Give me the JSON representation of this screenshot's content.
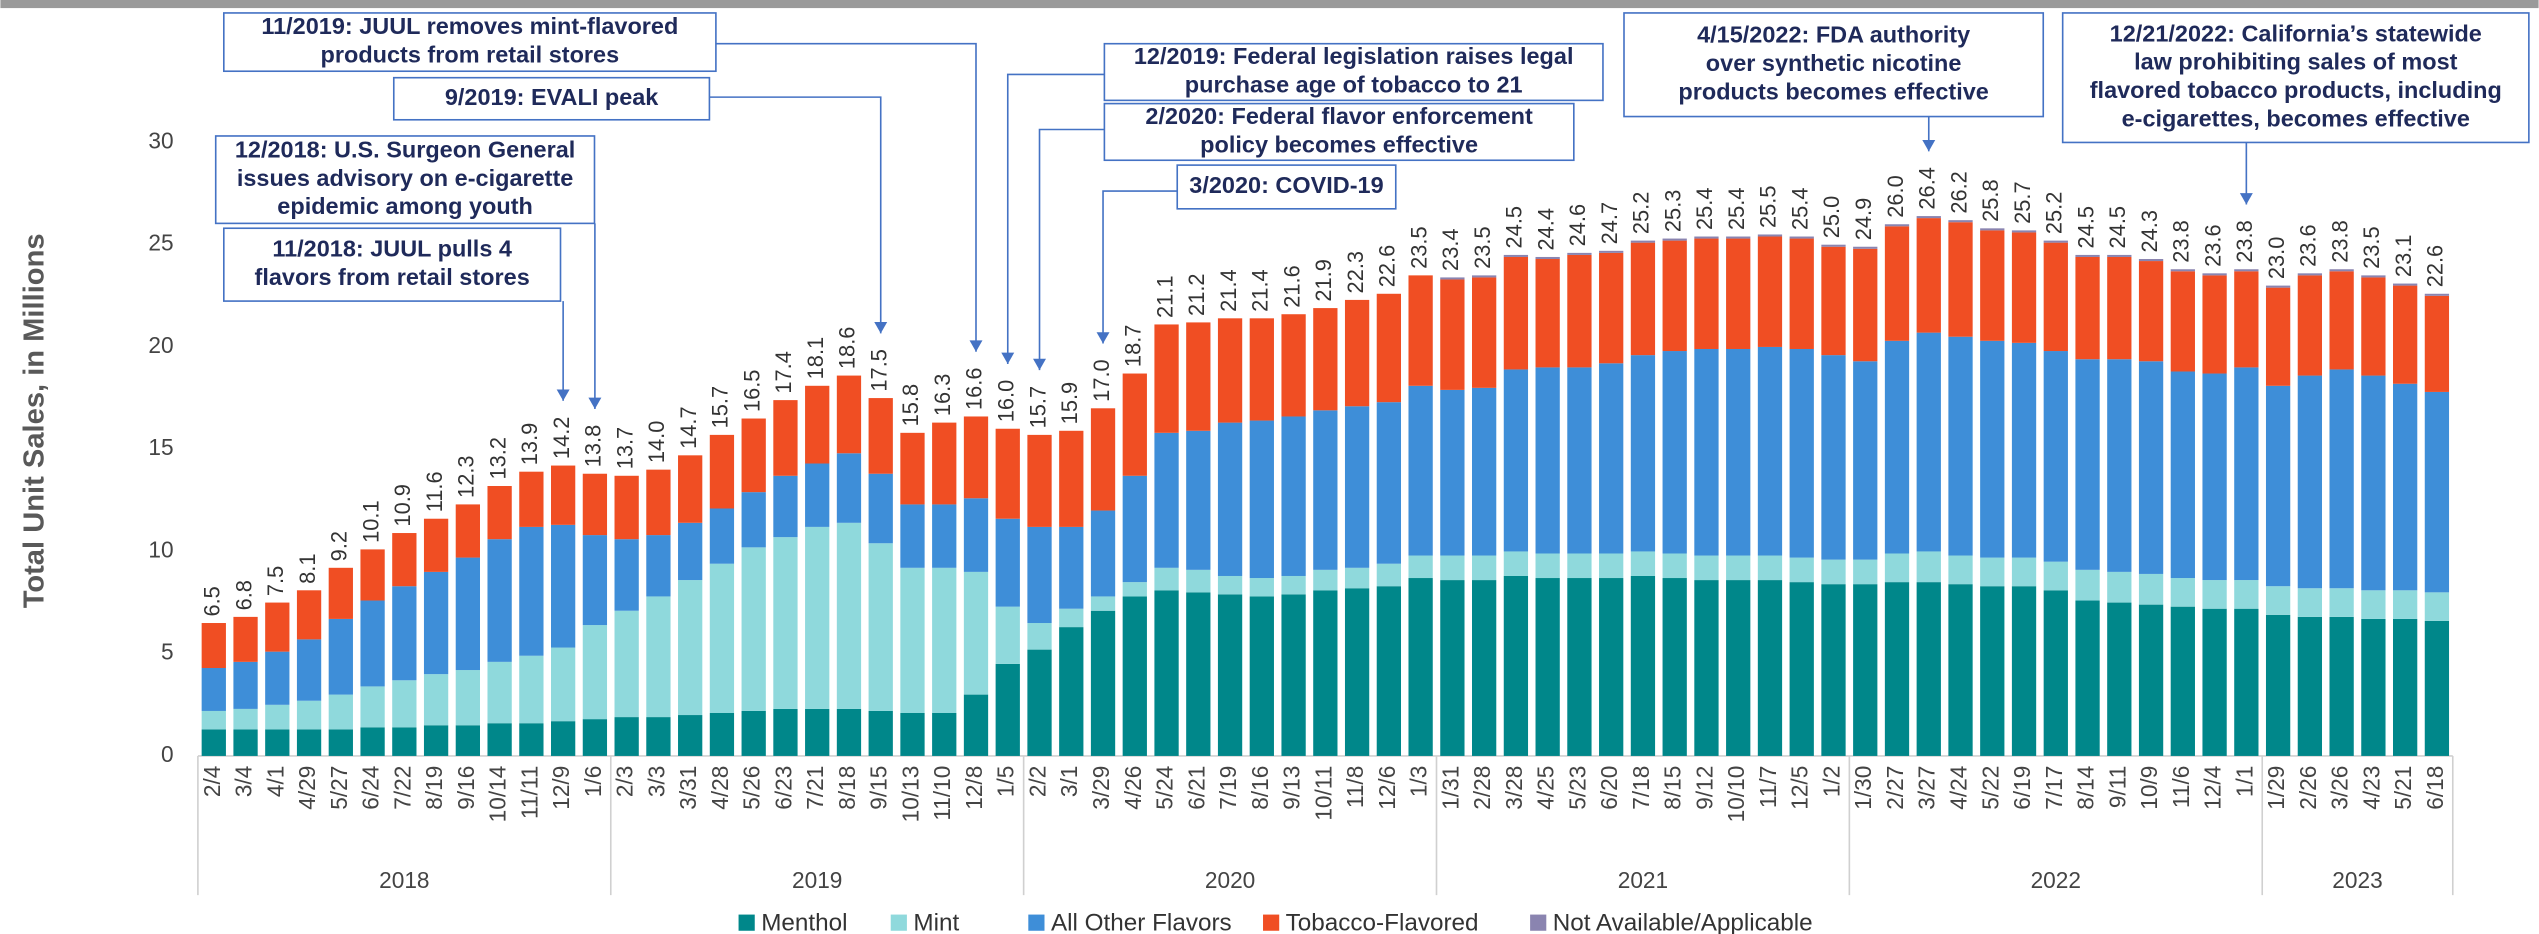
{
  "chart_data": {
    "type": "stacked_bar",
    "y_axis_label": "Total Unit Sales, in Millions",
    "categories": [
      "2/4",
      "3/4",
      "4/1",
      "4/29",
      "5/27",
      "6/24",
      "7/22",
      "8/19",
      "9/16",
      "10/14",
      "11/11",
      "12/9",
      "1/6",
      "2/3",
      "3/3",
      "3/31",
      "4/28",
      "5/26",
      "6/23",
      "7/21",
      "8/18",
      "9/15",
      "10/13",
      "11/10",
      "12/8",
      "1/5",
      "2/2",
      "3/1",
      "3/29",
      "4/26",
      "5/24",
      "6/21",
      "7/19",
      "8/16",
      "9/13",
      "10/11",
      "11/8",
      "12/6",
      "1/3",
      "1/31",
      "2/28",
      "3/28",
      "4/25",
      "5/23",
      "6/20",
      "7/18",
      "8/15",
      "9/12",
      "10/10",
      "11/7",
      "12/5",
      "1/2",
      "1/30",
      "2/27",
      "3/27",
      "4/24",
      "5/22",
      "6/19",
      "7/17",
      "8/14",
      "9/11",
      "10/9",
      "11/6",
      "12/4",
      "1/1",
      "1/29",
      "2/26",
      "3/26",
      "4/23",
      "5/21",
      "6/18"
    ],
    "year_groups": [
      {
        "label": "2018",
        "count": 13
      },
      {
        "label": "2019",
        "count": 13
      },
      {
        "label": "2020",
        "count": 13
      },
      {
        "label": "2021",
        "count": 13
      },
      {
        "label": "2022",
        "count": 13
      },
      {
        "label": "2023",
        "count": 6
      }
    ],
    "series": [
      {
        "name": "Menthol",
        "color": "#00878a",
        "values": [
          1.3,
          1.3,
          1.3,
          1.3,
          1.3,
          1.4,
          1.4,
          1.5,
          1.5,
          1.6,
          1.6,
          1.7,
          1.8,
          1.9,
          1.9,
          2.0,
          2.1,
          2.2,
          2.3,
          2.3,
          2.3,
          2.2,
          2.1,
          2.1,
          3.0,
          4.5,
          5.2,
          6.3,
          7.1,
          7.8,
          8.1,
          8.0,
          7.9,
          7.8,
          7.9,
          8.1,
          8.2,
          8.3,
          8.7,
          8.6,
          8.6,
          8.8,
          8.7,
          8.7,
          8.7,
          8.8,
          8.7,
          8.6,
          8.6,
          8.6,
          8.5,
          8.4,
          8.4,
          8.5,
          8.5,
          8.4,
          8.3,
          8.3,
          8.1,
          7.6,
          7.5,
          7.4,
          7.3,
          7.2,
          7.2,
          6.9,
          6.8,
          6.8,
          6.7,
          6.7,
          6.6
        ]
      },
      {
        "name": "Mint",
        "color": "#8fd9dc",
        "values": [
          0.9,
          1.0,
          1.2,
          1.4,
          1.7,
          2.0,
          2.3,
          2.5,
          2.7,
          3.0,
          3.3,
          3.6,
          4.6,
          5.2,
          5.9,
          6.6,
          7.3,
          8.0,
          8.4,
          8.9,
          9.1,
          8.2,
          7.1,
          7.1,
          6.0,
          2.8,
          1.3,
          0.9,
          0.7,
          0.7,
          1.1,
          1.1,
          0.9,
          0.9,
          0.9,
          1.0,
          1.0,
          1.1,
          1.1,
          1.2,
          1.2,
          1.2,
          1.2,
          1.2,
          1.2,
          1.2,
          1.2,
          1.2,
          1.2,
          1.2,
          1.2,
          1.2,
          1.2,
          1.4,
          1.5,
          1.4,
          1.4,
          1.4,
          1.4,
          1.5,
          1.5,
          1.5,
          1.4,
          1.4,
          1.4,
          1.4,
          1.4,
          1.4,
          1.4,
          1.4,
          1.4
        ]
      },
      {
        "name": "All Other Flavors",
        "color": "#3e8ed8",
        "values": [
          2.1,
          2.3,
          2.6,
          3.0,
          3.7,
          4.2,
          4.6,
          5.0,
          5.5,
          6.0,
          6.3,
          6.0,
          4.4,
          3.5,
          3.0,
          2.8,
          2.7,
          2.7,
          3.0,
          3.1,
          3.4,
          3.4,
          3.1,
          3.1,
          3.6,
          4.3,
          4.7,
          4.0,
          4.2,
          5.2,
          6.6,
          6.8,
          7.5,
          7.7,
          7.8,
          7.8,
          7.9,
          7.9,
          8.3,
          8.1,
          8.2,
          8.9,
          9.1,
          9.1,
          9.3,
          9.6,
          9.9,
          10.1,
          10.1,
          10.2,
          10.2,
          10.0,
          9.7,
          10.4,
          10.7,
          10.7,
          10.6,
          10.5,
          10.3,
          10.3,
          10.4,
          10.4,
          10.1,
          10.1,
          10.4,
          9.8,
          10.4,
          10.7,
          10.5,
          10.1,
          9.8
        ]
      },
      {
        "name": "Tobacco-Flavored",
        "color": "#f04e23",
        "values": [
          2.2,
          2.2,
          2.4,
          2.4,
          2.5,
          2.5,
          2.6,
          2.6,
          2.6,
          2.6,
          2.7,
          2.9,
          3.0,
          3.1,
          3.2,
          3.3,
          3.6,
          3.6,
          3.7,
          3.8,
          3.8,
          3.7,
          3.5,
          4.0,
          4.0,
          4.4,
          4.5,
          4.7,
          5.0,
          5.0,
          5.3,
          5.3,
          5.1,
          5.0,
          5.0,
          5.0,
          5.2,
          5.3,
          5.4,
          5.4,
          5.4,
          5.5,
          5.3,
          5.5,
          5.4,
          5.5,
          5.4,
          5.4,
          5.4,
          5.4,
          5.4,
          5.3,
          5.5,
          5.6,
          5.6,
          5.6,
          5.4,
          5.4,
          5.3,
          5.0,
          5.0,
          4.9,
          4.9,
          4.8,
          4.7,
          4.8,
          4.9,
          4.8,
          4.8,
          4.8,
          4.7
        ]
      },
      {
        "name": "Not Available/Applicable",
        "color": "#8a84b0",
        "values": [
          0,
          0,
          0,
          0,
          0,
          0,
          0,
          0,
          0,
          0,
          0,
          0,
          0,
          0,
          0,
          0,
          0,
          0,
          0,
          0,
          0,
          0,
          0,
          0,
          0,
          0,
          0,
          0,
          0,
          0,
          0,
          0,
          0,
          0,
          0,
          0,
          0,
          0,
          0,
          0.1,
          0.1,
          0.1,
          0.1,
          0.1,
          0.1,
          0.1,
          0.1,
          0.1,
          0.1,
          0.1,
          0.1,
          0.1,
          0.1,
          0.1,
          0.1,
          0.1,
          0.1,
          0.1,
          0.1,
          0.1,
          0.1,
          0.1,
          0.1,
          0.1,
          0.1,
          0.1,
          0.1,
          0.1,
          0.1,
          0.1,
          0.1
        ]
      }
    ],
    "totals": [
      6.5,
      6.8,
      7.5,
      8.1,
      9.2,
      10.1,
      10.9,
      11.6,
      12.3,
      13.2,
      13.9,
      14.2,
      13.8,
      13.7,
      14.0,
      14.7,
      15.7,
      16.5,
      17.4,
      18.1,
      18.6,
      17.5,
      15.8,
      16.3,
      16.6,
      16.0,
      15.7,
      15.9,
      17.0,
      18.7,
      21.1,
      21.2,
      21.4,
      21.4,
      21.6,
      21.9,
      22.3,
      22.6,
      23.5,
      23.4,
      23.5,
      24.5,
      24.4,
      24.6,
      24.7,
      25.2,
      25.3,
      25.4,
      25.4,
      25.5,
      25.4,
      25.0,
      24.9,
      26.0,
      26.4,
      26.2,
      25.8,
      25.7,
      25.2,
      24.5,
      24.5,
      24.3,
      23.8,
      23.6,
      23.8,
      23.0,
      23.6,
      23.8,
      23.5,
      23.1,
      22.6
    ],
    "total_labels": [
      "6.5",
      "6.8",
      "7.5",
      "8.1",
      "9.2",
      "10.1",
      "10.9",
      "11.6",
      "12.3",
      "13.2",
      "13.9",
      "14.2",
      "13.8",
      "13.7",
      "14.0",
      "14.7",
      "15.7",
      "16.5",
      "17.4",
      "18.1",
      "18.6",
      "17.5",
      "15.8",
      "16.3",
      "16.6",
      "16.0",
      "15.7",
      "15.9",
      "17.0",
      "18.7",
      "21.1",
      "21.2",
      "21.4",
      "21.4",
      "21.6",
      "21.9",
      "22.3",
      "22.6",
      "23.5",
      "23.4",
      "23.5",
      "24.5",
      "24.4",
      "24.6",
      "24.7",
      "25.2",
      "25.3",
      "25.4",
      "25.4",
      "25.5",
      "25.4",
      "25.0",
      "24.9",
      "26.0",
      "26.4",
      "26.2",
      "25.8",
      "25.7",
      "25.2",
      "24.5",
      "24.5",
      "24.3",
      "23.8",
      "23.6",
      "23.8",
      "23.0",
      "23.6",
      "23.8",
      "23.5",
      "23.1",
      "22.6"
    ],
    "ylim": [
      0,
      30
    ],
    "yticks": [
      0,
      5,
      10,
      15,
      20,
      25,
      30
    ],
    "grid": false,
    "legend": "bottom",
    "annotations": [
      {
        "lines": [
          "11/2019: JUUL removes mint-flavored",
          "products from retail stores"
        ]
      },
      {
        "lines": [
          "9/2019: EVALI peak"
        ]
      },
      {
        "lines": [
          "12/2018: U.S. Surgeon General",
          "issues advisory on e-cigarette",
          "epidemic among youth"
        ]
      },
      {
        "lines": [
          "11/2018: JUUL pulls 4",
          "flavors from retail stores"
        ]
      },
      {
        "lines": [
          "12/2019: Federal legislation raises legal",
          "purchase age of tobacco to 21"
        ]
      },
      {
        "lines": [
          "2/2020: Federal flavor enforcement",
          "policy becomes effective"
        ]
      },
      {
        "lines": [
          "3/2020: COVID-19"
        ]
      },
      {
        "lines": [
          "4/15/2022: FDA authority",
          "over synthetic nicotine",
          "products becomes effective"
        ]
      },
      {
        "lines": [
          "12/21/2022: California’s statewide",
          "law prohibiting sales of most",
          "flavored tobacco products, including",
          "e-cigarettes, becomes effective"
        ]
      }
    ]
  }
}
